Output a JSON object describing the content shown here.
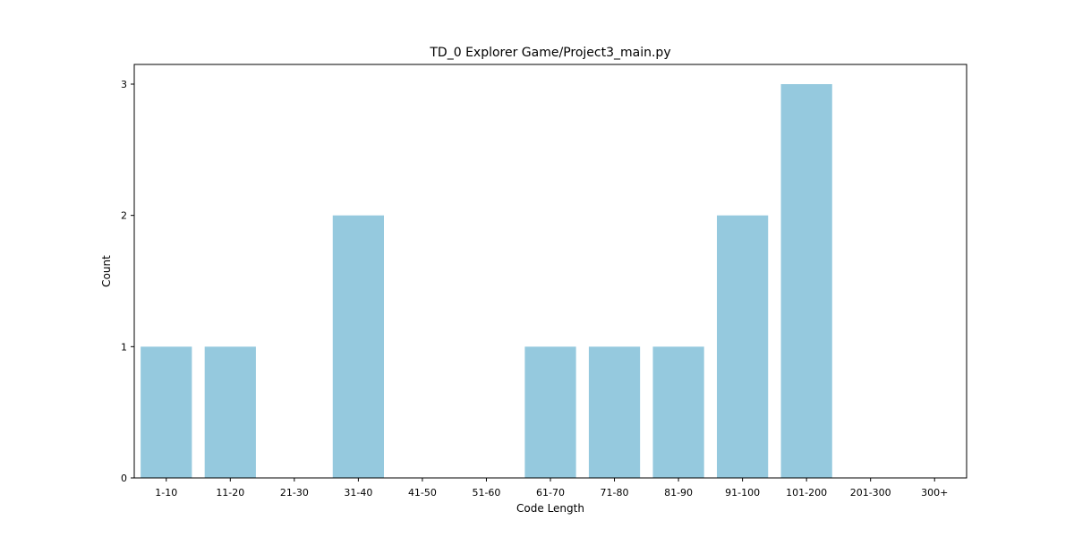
{
  "chart_data": {
    "type": "bar",
    "title": "TD_0 Explorer Game/Project3_main.py",
    "xlabel": "Code Length",
    "ylabel": "Count",
    "categories": [
      "1-10",
      "11-20",
      "21-30",
      "31-40",
      "41-50",
      "51-60",
      "61-70",
      "71-80",
      "81-90",
      "91-100",
      "101-200",
      "201-300",
      "300+"
    ],
    "values": [
      1,
      1,
      0,
      2,
      0,
      0,
      1,
      1,
      1,
      2,
      3,
      0,
      0
    ],
    "ylim": [
      0,
      3.15
    ],
    "yticks": [
      0,
      1,
      2,
      3
    ],
    "bar_color": "#95c9de",
    "grid": false,
    "legend": "none"
  }
}
